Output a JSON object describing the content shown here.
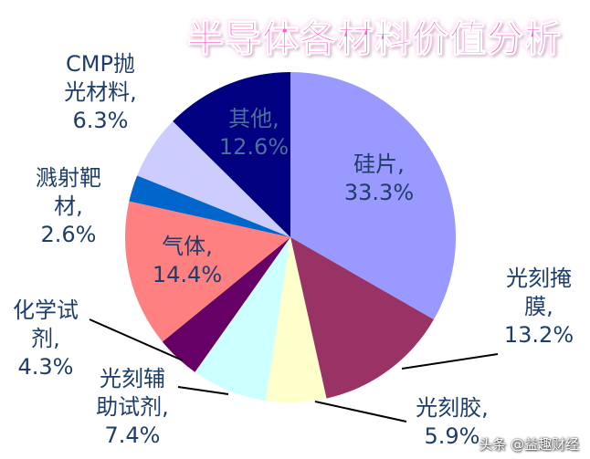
{
  "chart_data": {
    "type": "pie",
    "title": "半导体各材料价值分析",
    "categories": [
      "硅片,",
      "光刻掩\n膜,",
      "光刻胶,",
      "光刻辅\n助试剂,",
      "化学试\n剂,",
      "气体,",
      "溅射靶\n材,",
      "CMP抛\n光材料,",
      "其他,"
    ],
    "values": [
      33.3,
      13.2,
      5.9,
      7.4,
      4.3,
      14.4,
      2.6,
      6.3,
      12.6
    ],
    "value_labels": [
      "33.3%",
      "13.2%",
      "5.9%",
      "7.4%",
      "4.3%",
      "14.4%",
      "2.6%",
      "6.3%",
      "12.6%"
    ],
    "colors": [
      "#9999ff",
      "#993366",
      "#ffffcc",
      "#ccffff",
      "#660066",
      "#ff8080",
      "#0066cc",
      "#ccccff",
      "#000080"
    ]
  },
  "watermark": "头条 @益趣财经"
}
